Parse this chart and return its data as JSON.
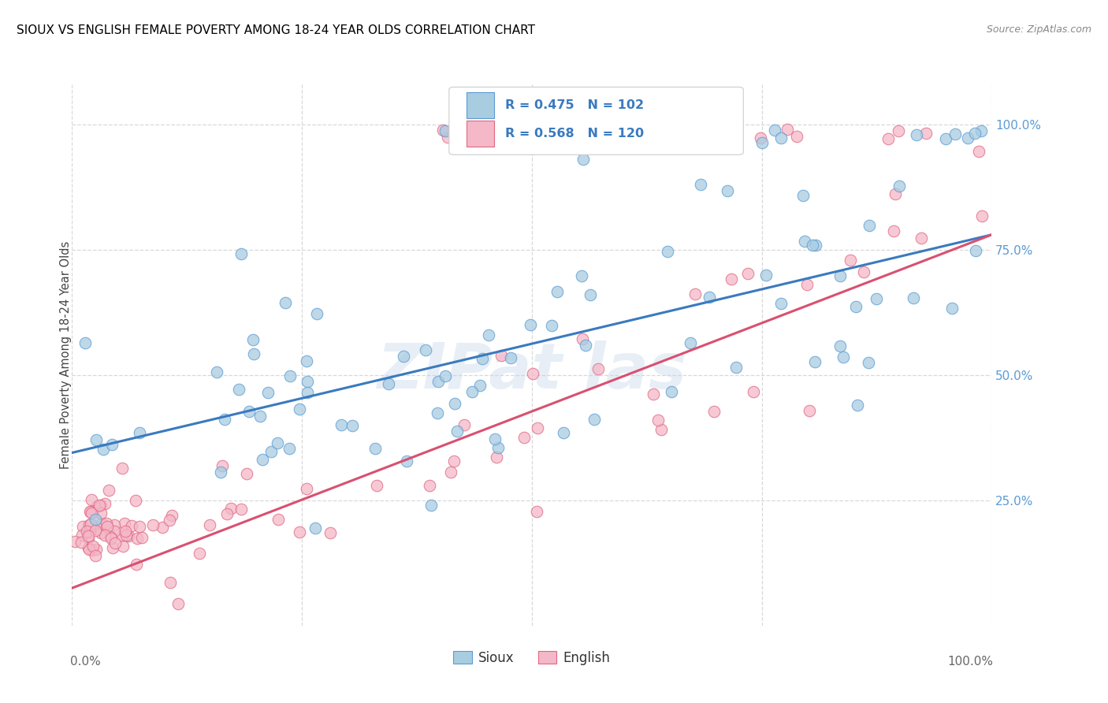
{
  "title": "SIOUX VS ENGLISH FEMALE POVERTY AMONG 18-24 YEAR OLDS CORRELATION CHART",
  "source": "Source: ZipAtlas.com",
  "ylabel": "Female Poverty Among 18-24 Year Olds",
  "sioux_color": "#a8cce0",
  "sioux_edge_color": "#5b9bd5",
  "english_color": "#f4b8c8",
  "english_edge_color": "#e06880",
  "sioux_line_color": "#3a7abf",
  "english_line_color": "#d95070",
  "sioux_R": 0.475,
  "sioux_N": 102,
  "english_R": 0.568,
  "english_N": 120,
  "sioux_intercept": 0.345,
  "sioux_slope": 0.435,
  "english_intercept": 0.075,
  "english_slope": 0.705,
  "ytick_color": "#5b9bd5",
  "legend_text_color": "#3a7abf",
  "grid_color": "#d8d8d8",
  "bg_color": "#ffffff"
}
